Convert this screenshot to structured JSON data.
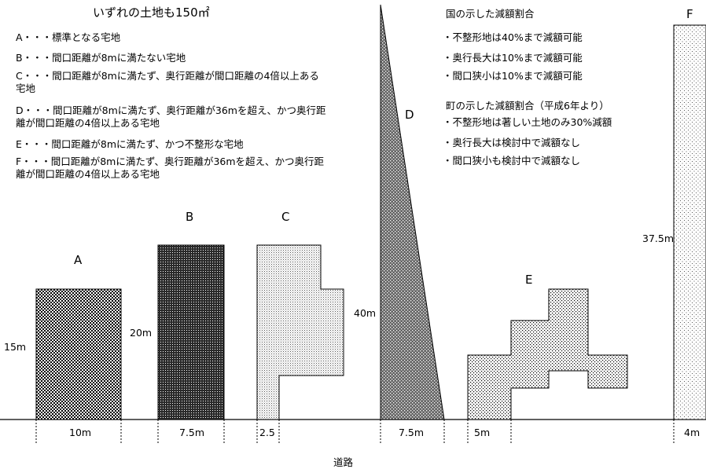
{
  "title": "いずれの土地も150㎡",
  "definitions": [
    "A・・・標準となる宅地",
    "B・・・間口距離が8mに満たない宅地",
    "C・・・間口距離が8mに満たず、奥行距離が間口距離の4倍以上ある宅地",
    "D・・・間口距離が8mに満たず、奥行距離が36mを超え、かつ奥行距離が間口距離の4倍以上ある宅地",
    "E・・・間口距離が8mに満たず、かつ不整形な宅地",
    "F・・・間口距離が8mに満たず、奥行距離が36mを超え、かつ奥行距離が間口距離の4倍以上ある宅地"
  ],
  "national": {
    "heading": "国の示した減額割合",
    "items": [
      "・不整形地は40%まで減額可能",
      "・奥行長大は10%まで減額可能",
      "・間口狭小は10%まで減額可能"
    ]
  },
  "town": {
    "heading": "町の示した減額割合（平成6年より）",
    "items": [
      "・不整形地は著しい土地のみ30%減額",
      "・奥行長大は検討中で減額なし",
      "・間口狭小も検討中で減額なし"
    ]
  },
  "lots": {
    "A": {
      "label": "A",
      "depth": "15m",
      "frontage": "10m"
    },
    "B": {
      "label": "B",
      "depth": "20m",
      "frontage": "7.5m"
    },
    "C": {
      "label": "C",
      "frontage": "2.5"
    },
    "D": {
      "label": "D",
      "depth": "40m",
      "frontage": "7.5m"
    },
    "E": {
      "label": "E",
      "frontage": "5m"
    },
    "F": {
      "label": "F",
      "depth": "37.5m",
      "frontage": "4m"
    }
  },
  "road_label": "道路"
}
